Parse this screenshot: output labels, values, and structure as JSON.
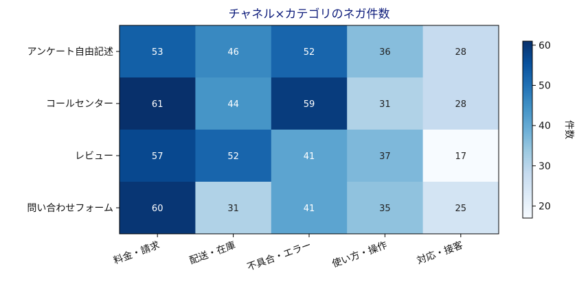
{
  "chart_data": {
    "type": "heatmap",
    "title": "チャネル×カテゴリのネガ件数",
    "rows": [
      "アンケート自由記述",
      "コールセンター",
      "レビュー",
      "問い合わせフォーム"
    ],
    "columns": [
      "料金・請求",
      "配送・在庫",
      "不具合・エラー",
      "使い方・操作",
      "対応・接客"
    ],
    "values": [
      [
        53,
        46,
        52,
        36,
        28
      ],
      [
        61,
        44,
        59,
        31,
        28
      ],
      [
        57,
        52,
        41,
        37,
        17
      ],
      [
        60,
        31,
        41,
        35,
        25
      ]
    ],
    "colorbar": {
      "label": "件数",
      "range": [
        17,
        61
      ],
      "ticks": [
        20,
        30,
        40,
        50,
        60
      ],
      "colormap": "Blues"
    }
  }
}
